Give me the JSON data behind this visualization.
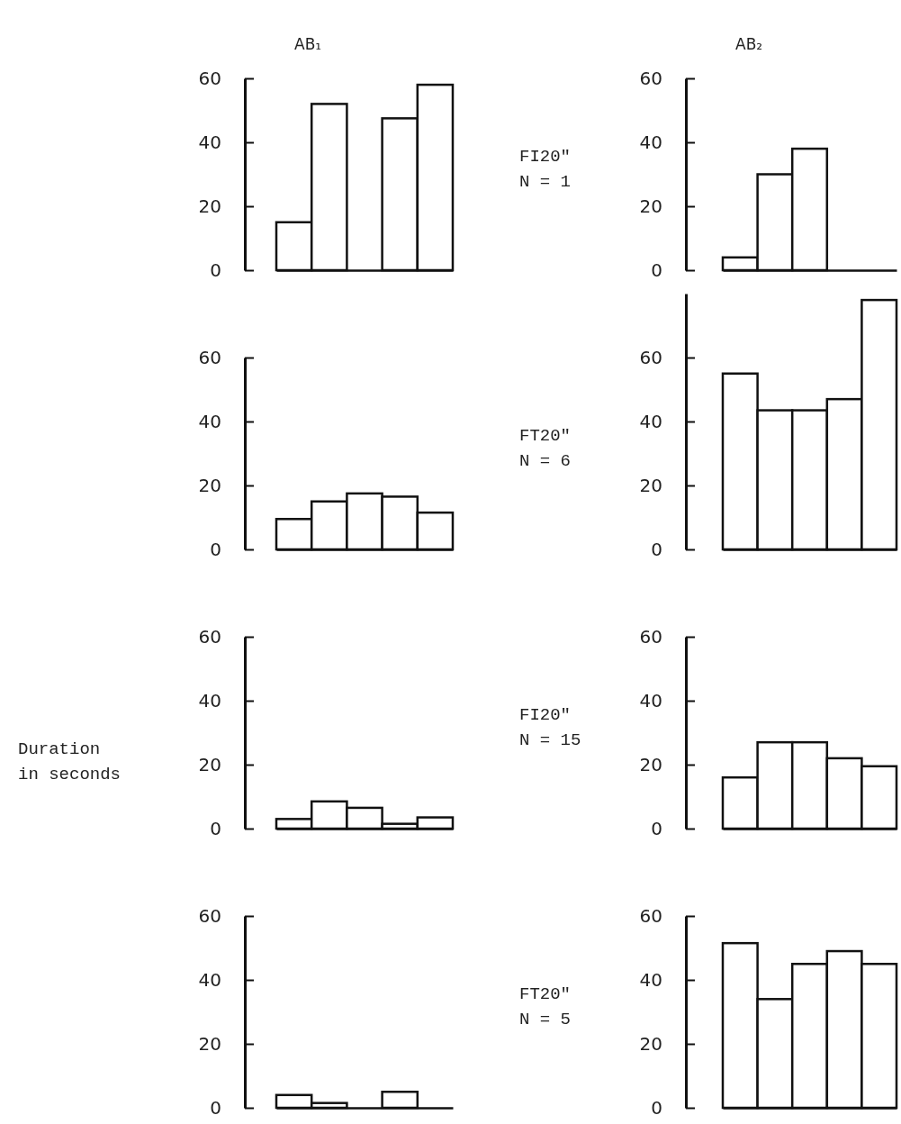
{
  "chart_data": [
    {
      "type": "bar",
      "title": "AB₁",
      "categories": [
        null,
        null,
        null,
        null,
        null
      ],
      "values": [
        15,
        52,
        0,
        47.5,
        58
      ],
      "color": "#ffffff",
      "ylim": [
        0,
        60
      ],
      "yticks": [
        0,
        20,
        40,
        60
      ],
      "tick_labels": "y"
    },
    {
      "type": "bar",
      "title": "AB₂",
      "categories": [
        null,
        null,
        null,
        null,
        null
      ],
      "values": [
        4,
        30,
        38,
        0,
        0
      ],
      "color": "#ffffff",
      "ylim": [
        0,
        60
      ],
      "yticks": [
        0,
        20,
        40,
        60
      ],
      "tick_labels": "y",
      "annotations": [
        "FI20\"",
        "N = 1"
      ]
    },
    {
      "type": "bar",
      "categories": [
        null,
        null,
        null,
        null,
        null
      ],
      "values": [
        9.5,
        15,
        17.5,
        16.5,
        11.5
      ],
      "color": "#ffffff",
      "ylim": [
        0,
        60
      ],
      "yticks": [
        0,
        20,
        40,
        60
      ],
      "tick_labels": "y"
    },
    {
      "type": "bar",
      "categories": [
        null,
        null,
        null,
        null,
        null
      ],
      "values": [
        55,
        43.5,
        43.5,
        47,
        78
      ],
      "color": "#ffffff",
      "ylim": [
        0,
        80
      ],
      "yticks": [
        0,
        20,
        40,
        60
      ],
      "tick_labels": "y",
      "annotations": [
        "FT20\"",
        "N = 6"
      ]
    },
    {
      "type": "bar",
      "ylabel": "Duration in seconds",
      "categories": [
        null,
        null,
        null,
        null,
        null
      ],
      "values": [
        3,
        8.5,
        6.5,
        1.5,
        3.5
      ],
      "color": "#ffffff",
      "ylim": [
        0,
        60
      ],
      "yticks": [
        0,
        20,
        40,
        60
      ],
      "tick_labels": "y"
    },
    {
      "type": "bar",
      "categories": [
        null,
        null,
        null,
        null,
        null
      ],
      "values": [
        16,
        27,
        27,
        22,
        19.5
      ],
      "color": "#ffffff",
      "ylim": [
        0,
        60
      ],
      "yticks": [
        0,
        20,
        40,
        60
      ],
      "tick_labels": "y",
      "annotations": [
        "FI20\"",
        "N = 15"
      ]
    },
    {
      "type": "bar",
      "categories": [
        null,
        null,
        null,
        null,
        null
      ],
      "values": [
        4,
        1.5,
        0,
        5,
        0
      ],
      "color": "#ffffff",
      "ylim": [
        0,
        60
      ],
      "yticks": [
        0,
        20,
        40,
        60
      ],
      "tick_labels": "y"
    },
    {
      "type": "bar",
      "categories": [
        null,
        null,
        null,
        null,
        null
      ],
      "values": [
        51.5,
        34,
        45,
        49,
        45
      ],
      "color": "#ffffff",
      "ylim": [
        0,
        60
      ],
      "yticks": [
        0,
        20,
        40,
        60
      ],
      "tick_labels": "y",
      "annotations": [
        "FT20\"",
        "N = 5"
      ]
    }
  ]
}
